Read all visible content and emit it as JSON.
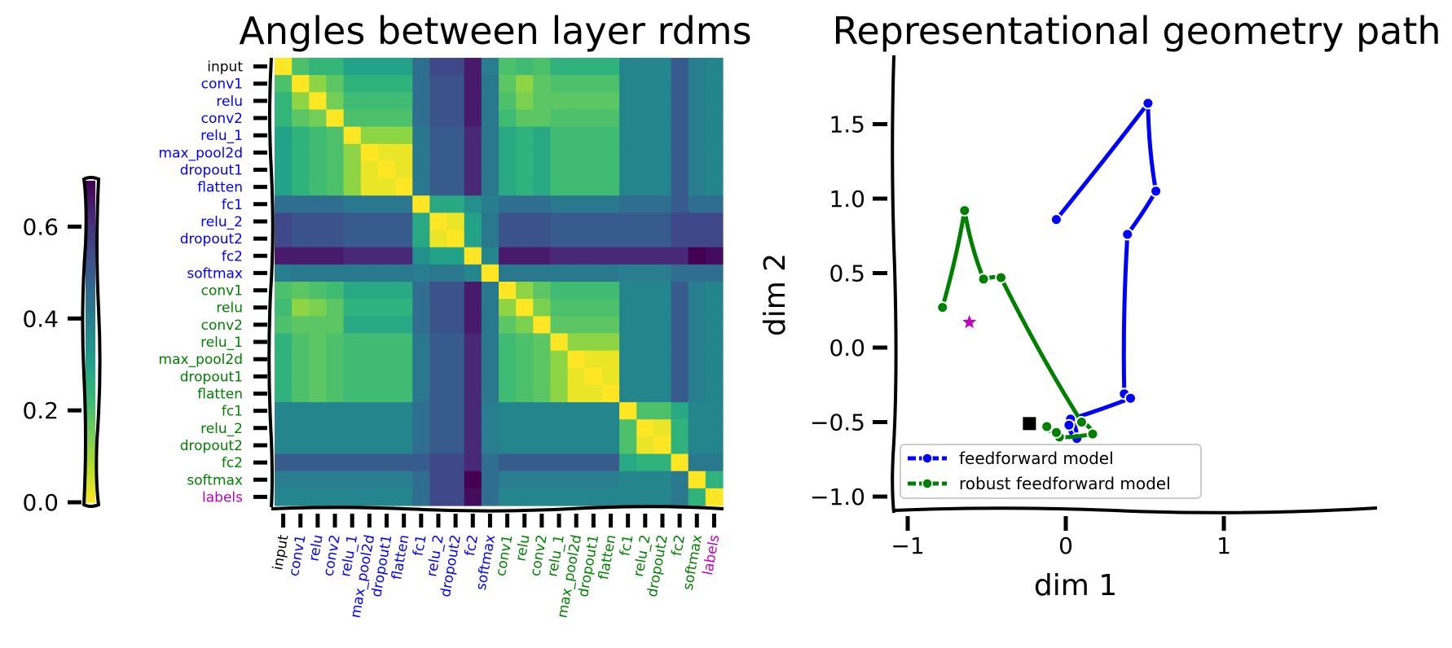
{
  "chart_data": [
    {
      "type": "heatmap",
      "title": "Angles between layer rdms",
      "row_labels": [
        "input",
        "conv1",
        "relu",
        "conv2",
        "relu_1",
        "max_pool2d",
        "dropout1",
        "flatten",
        "fc1",
        "relu_2",
        "dropout2",
        "fc2",
        "softmax",
        "conv1",
        "relu",
        "conv2",
        "relu_1",
        "max_pool2d",
        "dropout1",
        "flatten",
        "fc1",
        "relu_2",
        "dropout2",
        "fc2",
        "softmax",
        "labels"
      ],
      "label_colors": [
        "#000000",
        "#0000ff",
        "#0000ff",
        "#0000ff",
        "#0000ff",
        "#0000ff",
        "#0000ff",
        "#0000ff",
        "#0000ff",
        "#0000ff",
        "#0000ff",
        "#0000ff",
        "#0000ff",
        "#008000",
        "#008000",
        "#008000",
        "#008000",
        "#008000",
        "#008000",
        "#008000",
        "#008000",
        "#008000",
        "#008000",
        "#008000",
        "#008000",
        "#bf00bf"
      ],
      "col_labels": [
        "input",
        "conv1",
        "relu",
        "conv2",
        "relu_1",
        "max_pool2d",
        "dropout1",
        "flatten",
        "fc1",
        "relu_2",
        "dropout2",
        "fc2",
        "softmax",
        "conv1",
        "relu",
        "conv2",
        "relu_1",
        "max_pool2d",
        "dropout1",
        "flatten",
        "fc1",
        "relu_2",
        "dropout2",
        "fc2",
        "softmax",
        "labels"
      ],
      "colormap": "viridis_r",
      "matrix": [
        [
          0.0,
          0.2,
          0.24,
          0.24,
          0.3,
          0.3,
          0.3,
          0.3,
          0.45,
          0.55,
          0.55,
          0.65,
          0.4,
          0.2,
          0.22,
          0.2,
          0.25,
          0.25,
          0.25,
          0.25,
          0.38,
          0.38,
          0.38,
          0.5,
          0.4,
          0.38
        ],
        [
          0.2,
          0.0,
          0.12,
          0.18,
          0.25,
          0.25,
          0.25,
          0.25,
          0.45,
          0.52,
          0.52,
          0.65,
          0.42,
          0.18,
          0.12,
          0.18,
          0.2,
          0.2,
          0.2,
          0.2,
          0.38,
          0.38,
          0.38,
          0.5,
          0.4,
          0.38
        ],
        [
          0.24,
          0.12,
          0.0,
          0.15,
          0.22,
          0.22,
          0.22,
          0.22,
          0.45,
          0.52,
          0.52,
          0.65,
          0.42,
          0.2,
          0.14,
          0.18,
          0.18,
          0.18,
          0.18,
          0.18,
          0.38,
          0.38,
          0.38,
          0.5,
          0.4,
          0.38
        ],
        [
          0.24,
          0.18,
          0.15,
          0.0,
          0.2,
          0.2,
          0.2,
          0.2,
          0.45,
          0.52,
          0.52,
          0.65,
          0.42,
          0.22,
          0.18,
          0.18,
          0.2,
          0.2,
          0.2,
          0.2,
          0.38,
          0.38,
          0.38,
          0.5,
          0.4,
          0.38
        ],
        [
          0.3,
          0.25,
          0.22,
          0.2,
          0.0,
          0.12,
          0.12,
          0.12,
          0.42,
          0.5,
          0.5,
          0.62,
          0.42,
          0.28,
          0.25,
          0.28,
          0.22,
          0.22,
          0.22,
          0.22,
          0.38,
          0.38,
          0.38,
          0.5,
          0.4,
          0.38
        ],
        [
          0.3,
          0.25,
          0.22,
          0.2,
          0.12,
          0.0,
          0.02,
          0.02,
          0.42,
          0.5,
          0.5,
          0.62,
          0.42,
          0.28,
          0.25,
          0.28,
          0.22,
          0.22,
          0.22,
          0.22,
          0.38,
          0.38,
          0.38,
          0.5,
          0.4,
          0.38
        ],
        [
          0.3,
          0.25,
          0.22,
          0.2,
          0.12,
          0.02,
          0.0,
          0.02,
          0.42,
          0.5,
          0.5,
          0.62,
          0.42,
          0.28,
          0.25,
          0.28,
          0.22,
          0.22,
          0.22,
          0.22,
          0.38,
          0.38,
          0.38,
          0.5,
          0.4,
          0.38
        ],
        [
          0.3,
          0.25,
          0.22,
          0.2,
          0.12,
          0.02,
          0.02,
          0.0,
          0.42,
          0.5,
          0.5,
          0.62,
          0.42,
          0.28,
          0.25,
          0.28,
          0.22,
          0.22,
          0.22,
          0.22,
          0.38,
          0.38,
          0.38,
          0.5,
          0.4,
          0.38
        ],
        [
          0.45,
          0.45,
          0.45,
          0.45,
          0.42,
          0.42,
          0.42,
          0.42,
          0.0,
          0.28,
          0.28,
          0.35,
          0.4,
          0.45,
          0.45,
          0.45,
          0.42,
          0.42,
          0.42,
          0.42,
          0.45,
          0.45,
          0.45,
          0.5,
          0.45,
          0.45
        ],
        [
          0.55,
          0.52,
          0.52,
          0.52,
          0.5,
          0.5,
          0.5,
          0.5,
          0.28,
          0.0,
          0.02,
          0.3,
          0.42,
          0.52,
          0.52,
          0.52,
          0.5,
          0.5,
          0.5,
          0.5,
          0.5,
          0.5,
          0.5,
          0.55,
          0.55,
          0.55
        ],
        [
          0.55,
          0.52,
          0.52,
          0.52,
          0.5,
          0.5,
          0.5,
          0.5,
          0.28,
          0.02,
          0.0,
          0.3,
          0.42,
          0.52,
          0.52,
          0.52,
          0.5,
          0.5,
          0.5,
          0.5,
          0.5,
          0.5,
          0.5,
          0.55,
          0.55,
          0.55
        ],
        [
          0.65,
          0.65,
          0.65,
          0.65,
          0.62,
          0.62,
          0.62,
          0.62,
          0.35,
          0.3,
          0.3,
          0.0,
          0.38,
          0.65,
          0.65,
          0.65,
          0.62,
          0.62,
          0.62,
          0.62,
          0.62,
          0.62,
          0.62,
          0.62,
          0.7,
          0.68
        ],
        [
          0.4,
          0.42,
          0.42,
          0.42,
          0.42,
          0.42,
          0.42,
          0.42,
          0.4,
          0.42,
          0.42,
          0.38,
          0.0,
          0.42,
          0.42,
          0.42,
          0.42,
          0.42,
          0.42,
          0.42,
          0.4,
          0.4,
          0.4,
          0.45,
          0.45,
          0.45
        ],
        [
          0.2,
          0.18,
          0.2,
          0.22,
          0.28,
          0.28,
          0.28,
          0.28,
          0.45,
          0.52,
          0.52,
          0.65,
          0.42,
          0.0,
          0.12,
          0.18,
          0.22,
          0.22,
          0.22,
          0.22,
          0.38,
          0.38,
          0.38,
          0.5,
          0.4,
          0.38
        ],
        [
          0.22,
          0.12,
          0.14,
          0.18,
          0.25,
          0.25,
          0.25,
          0.25,
          0.45,
          0.52,
          0.52,
          0.65,
          0.42,
          0.12,
          0.0,
          0.14,
          0.2,
          0.2,
          0.2,
          0.2,
          0.38,
          0.38,
          0.38,
          0.5,
          0.4,
          0.38
        ],
        [
          0.2,
          0.18,
          0.18,
          0.18,
          0.28,
          0.28,
          0.28,
          0.28,
          0.45,
          0.52,
          0.52,
          0.65,
          0.42,
          0.18,
          0.14,
          0.0,
          0.18,
          0.18,
          0.18,
          0.18,
          0.38,
          0.38,
          0.38,
          0.5,
          0.4,
          0.38
        ],
        [
          0.25,
          0.2,
          0.18,
          0.2,
          0.22,
          0.22,
          0.22,
          0.22,
          0.42,
          0.5,
          0.5,
          0.62,
          0.42,
          0.22,
          0.2,
          0.18,
          0.0,
          0.12,
          0.12,
          0.12,
          0.38,
          0.38,
          0.38,
          0.5,
          0.4,
          0.38
        ],
        [
          0.25,
          0.2,
          0.18,
          0.2,
          0.22,
          0.22,
          0.22,
          0.22,
          0.42,
          0.5,
          0.5,
          0.62,
          0.42,
          0.22,
          0.2,
          0.18,
          0.12,
          0.0,
          0.02,
          0.02,
          0.38,
          0.38,
          0.38,
          0.5,
          0.4,
          0.38
        ],
        [
          0.25,
          0.2,
          0.18,
          0.2,
          0.22,
          0.22,
          0.22,
          0.22,
          0.42,
          0.5,
          0.5,
          0.62,
          0.42,
          0.22,
          0.2,
          0.18,
          0.12,
          0.02,
          0.0,
          0.02,
          0.38,
          0.38,
          0.38,
          0.5,
          0.4,
          0.38
        ],
        [
          0.25,
          0.2,
          0.18,
          0.2,
          0.22,
          0.22,
          0.22,
          0.22,
          0.42,
          0.5,
          0.5,
          0.62,
          0.42,
          0.22,
          0.2,
          0.18,
          0.12,
          0.02,
          0.02,
          0.0,
          0.38,
          0.38,
          0.38,
          0.5,
          0.4,
          0.38
        ],
        [
          0.38,
          0.38,
          0.38,
          0.38,
          0.38,
          0.38,
          0.38,
          0.38,
          0.45,
          0.5,
          0.5,
          0.62,
          0.4,
          0.38,
          0.38,
          0.38,
          0.38,
          0.38,
          0.38,
          0.38,
          0.0,
          0.2,
          0.2,
          0.28,
          0.38,
          0.38
        ],
        [
          0.38,
          0.38,
          0.38,
          0.38,
          0.38,
          0.38,
          0.38,
          0.38,
          0.45,
          0.5,
          0.5,
          0.62,
          0.4,
          0.38,
          0.38,
          0.38,
          0.38,
          0.38,
          0.38,
          0.38,
          0.2,
          0.0,
          0.02,
          0.25,
          0.38,
          0.38
        ],
        [
          0.38,
          0.38,
          0.38,
          0.38,
          0.38,
          0.38,
          0.38,
          0.38,
          0.45,
          0.5,
          0.5,
          0.62,
          0.4,
          0.38,
          0.38,
          0.38,
          0.38,
          0.38,
          0.38,
          0.38,
          0.2,
          0.02,
          0.0,
          0.25,
          0.38,
          0.38
        ],
        [
          0.5,
          0.5,
          0.5,
          0.5,
          0.5,
          0.5,
          0.5,
          0.5,
          0.5,
          0.55,
          0.55,
          0.62,
          0.45,
          0.5,
          0.5,
          0.5,
          0.5,
          0.5,
          0.5,
          0.5,
          0.28,
          0.25,
          0.25,
          0.0,
          0.42,
          0.42
        ],
        [
          0.4,
          0.4,
          0.4,
          0.4,
          0.4,
          0.4,
          0.4,
          0.4,
          0.45,
          0.55,
          0.55,
          0.7,
          0.45,
          0.4,
          0.4,
          0.4,
          0.4,
          0.4,
          0.4,
          0.4,
          0.38,
          0.38,
          0.38,
          0.42,
          0.0,
          0.25
        ],
        [
          0.38,
          0.38,
          0.38,
          0.38,
          0.38,
          0.38,
          0.38,
          0.38,
          0.45,
          0.55,
          0.55,
          0.68,
          0.45,
          0.38,
          0.38,
          0.38,
          0.38,
          0.38,
          0.38,
          0.38,
          0.38,
          0.38,
          0.38,
          0.42,
          0.25,
          0.0
        ]
      ],
      "colorbar": {
        "range": [
          0.0,
          0.7
        ],
        "ticks": [
          "0.0",
          "0.2",
          "0.4",
          "0.6"
        ]
      }
    },
    {
      "type": "line",
      "title": "Representational geometry path",
      "xlabel": "dim 1",
      "ylabel": "dim 2",
      "xlim": [
        -1.1,
        1.95
      ],
      "ylim": [
        -1.1,
        1.9
      ],
      "xticks": [
        "−1",
        "0",
        "1"
      ],
      "yticks": [
        "1.5",
        "1.0",
        "0.5",
        "0.0",
        "−0.5",
        "−1.0"
      ],
      "legend_position": "lower left",
      "series": [
        {
          "name": "feedforward model",
          "color": "#0000ff",
          "x": [
            -0.06,
            0.52,
            0.57,
            0.39,
            0.37,
            0.41,
            0.03,
            0.07,
            0.02
          ],
          "y": [
            0.86,
            1.64,
            1.05,
            0.76,
            -0.31,
            -0.34,
            -0.48,
            -0.61,
            -0.52
          ]
        },
        {
          "name": "robust feedforward model",
          "color": "#008000",
          "x": [
            -0.78,
            -0.64,
            -0.52,
            -0.41,
            0.1,
            0.17,
            -0.04,
            -0.12,
            -0.06
          ],
          "y": [
            0.27,
            0.92,
            0.46,
            0.47,
            -0.5,
            -0.58,
            -0.6,
            -0.53,
            -0.57
          ]
        }
      ],
      "markers": [
        {
          "name": "star",
          "color": "#bf00bf",
          "x": -0.61,
          "y": 0.17
        },
        {
          "name": "square",
          "color": "#000000",
          "x": -0.23,
          "y": -0.51
        }
      ]
    }
  ]
}
